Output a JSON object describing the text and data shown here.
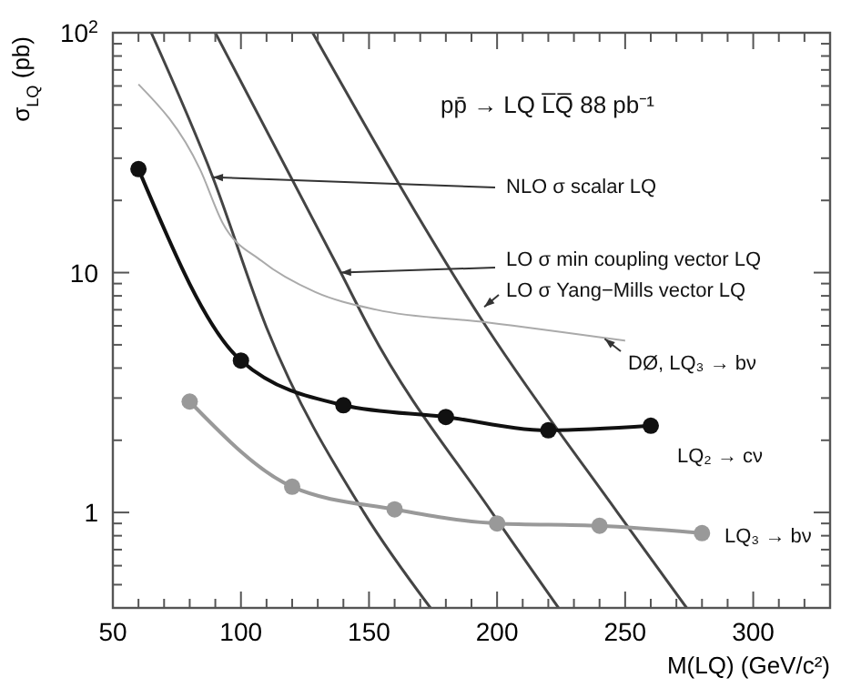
{
  "chart_data": {
    "type": "line",
    "xlabel": "M(LQ)  (GeV/c²)",
    "ylabel": "σ$_{LQ}$ (pb)",
    "log": "y",
    "grid": false,
    "xlim": [
      50,
      330
    ],
    "ylim": [
      0.4,
      100
    ],
    "xticks": [
      50,
      {
        "value": 60,
        "label": null
      },
      {
        "value": 70,
        "label": null
      },
      {
        "value": 80,
        "label": null
      },
      {
        "value": 90,
        "label": null
      },
      100,
      {
        "value": 110,
        "label": null
      },
      {
        "value": 120,
        "label": null
      },
      {
        "value": 130,
        "label": null
      },
      {
        "value": 140,
        "label": null
      },
      150,
      {
        "value": 160,
        "label": null
      },
      {
        "value": 170,
        "label": null
      },
      {
        "value": 180,
        "label": null
      },
      {
        "value": 190,
        "label": null
      },
      200,
      {
        "value": 210,
        "label": null
      },
      {
        "value": 220,
        "label": null
      },
      {
        "value": 230,
        "label": null
      },
      {
        "value": 240,
        "label": null
      },
      250,
      {
        "value": 260,
        "label": null
      },
      {
        "value": 270,
        "label": null
      },
      {
        "value": 280,
        "label": null
      },
      {
        "value": 290,
        "label": null
      },
      300,
      {
        "value": 310,
        "label": null
      },
      {
        "value": 320,
        "label": null
      }
    ],
    "yticks": [
      {
        "value": 0.5,
        "label": null
      },
      {
        "value": 0.6,
        "label": null
      },
      {
        "value": 0.7,
        "label": null
      },
      {
        "value": 0.8,
        "label": null
      },
      {
        "value": 0.9,
        "label": null
      },
      1,
      {
        "value": 2,
        "label": null
      },
      {
        "value": 3,
        "label": null
      },
      {
        "value": 4,
        "label": null
      },
      {
        "value": 5,
        "label": null
      },
      {
        "value": 6,
        "label": null
      },
      {
        "value": 7,
        "label": null
      },
      {
        "value": 8,
        "label": null
      },
      {
        "value": 9,
        "label": null
      },
      10,
      {
        "value": 20,
        "label": null
      },
      {
        "value": 30,
        "label": null
      },
      {
        "value": 40,
        "label": null
      },
      {
        "value": 50,
        "label": null
      },
      {
        "value": 60,
        "label": null
      },
      {
        "value": 70,
        "label": null
      },
      {
        "value": 80,
        "label": null
      },
      {
        "value": 90,
        "label": null
      },
      {
        "value": 100,
        "label": "10$^{2}$"
      }
    ],
    "annotations": [
      "pp̄ → LQ L̅Q̅    88 pb⁻¹",
      {
        "text": "NLO σ scalar LQ",
        "x": 89,
        "y": 25
      },
      {
        "text": "LO σ min coupling vector LQ",
        "x": 139,
        "y": 10
      },
      {
        "text": "LO σ Yang−Mills vector LQ",
        "x": 195,
        "y": 7.2
      },
      {
        "text": "DØ, LQ₃ → bν",
        "x": 242,
        "y": 5.3
      }
    ],
    "series": [
      {
        "color": "#444444",
        "marker": "none",
        "x": [
          65,
          89,
          110,
          148,
          174
        ],
        "values": [
          100,
          25,
          5.9,
          1.0,
          0.4
        ]
      },
      {
        "color": "#444444",
        "marker": "none",
        "x": [
          90,
          139,
          150,
          198,
          224
        ],
        "values": [
          100,
          10,
          5.9,
          1.0,
          0.4
        ]
      },
      {
        "color": "#444444",
        "marker": "none",
        "x": [
          128,
          196,
          247,
          274
        ],
        "values": [
          100,
          5.9,
          1.0,
          0.4
        ]
      },
      {
        "color": "#aaaaaa",
        "marker": "none",
        "x": [
          60,
          84,
          93,
          108,
          129,
          153,
          196,
          250
        ],
        "values": [
          61,
          27,
          16,
          11.2,
          8.3,
          7.0,
          6.2,
          5.2
        ]
      },
      {
        "name": "LQ₂ → cν",
        "color": "#111111",
        "marker": "circle",
        "x": [
          60,
          100,
          140,
          180,
          220,
          260
        ],
        "values": [
          27,
          4.3,
          2.8,
          2.5,
          2.2,
          2.3
        ]
      },
      {
        "name": "LQ₃ → bν",
        "color": "#999999",
        "marker": "circle",
        "x": [
          80,
          120,
          160,
          200,
          240,
          280
        ],
        "values": [
          2.9,
          1.28,
          1.03,
          0.9,
          0.88,
          0.82
        ]
      }
    ]
  }
}
